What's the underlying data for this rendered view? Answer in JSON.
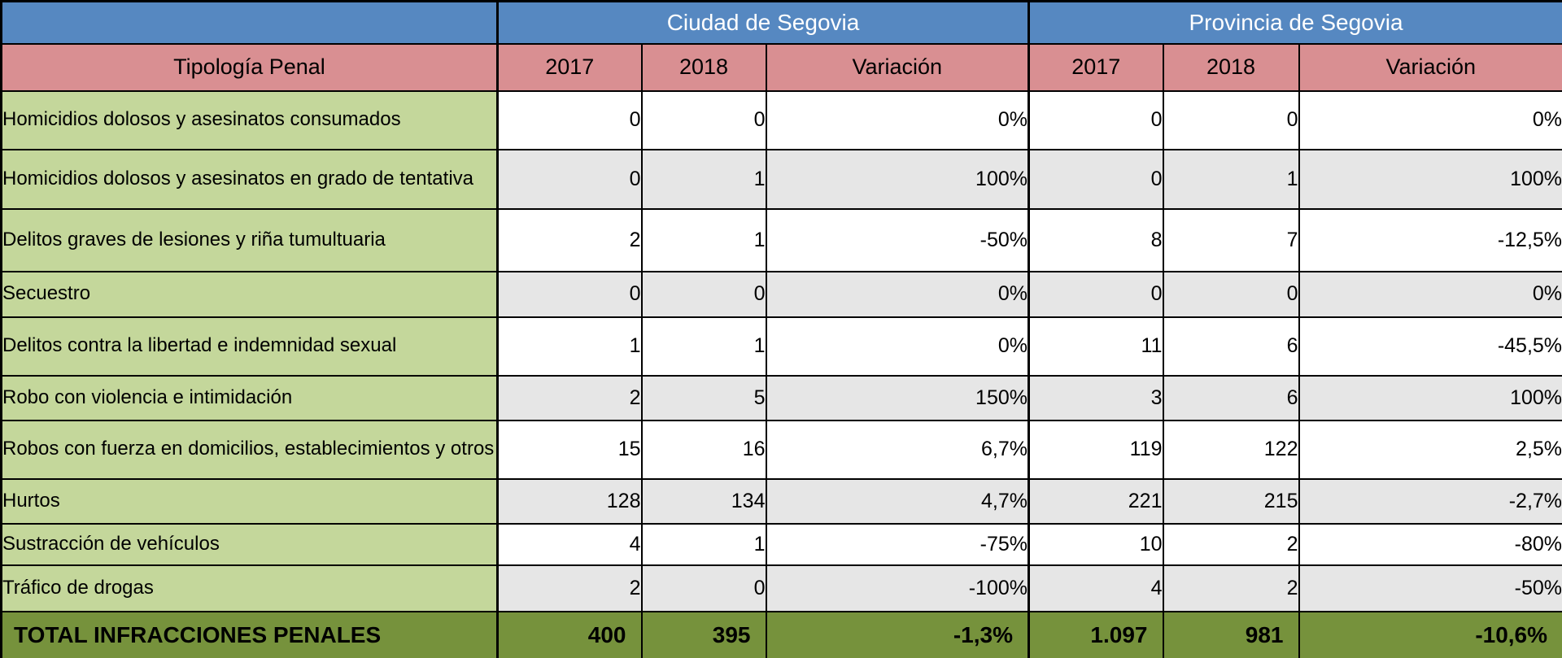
{
  "table": {
    "group_headers": {
      "corner": "",
      "city": "Ciudad de Segovia",
      "province": "Provincia de Segovia"
    },
    "column_headers": {
      "label": "Tipología Penal",
      "city": [
        "2017",
        "2018",
        "Variación"
      ],
      "province": [
        "2017",
        "2018",
        "Variación"
      ]
    },
    "rows": [
      {
        "label": "Homicidios dolosos y asesinatos consumados",
        "city": [
          "0",
          "0",
          "0%"
        ],
        "province": [
          "0",
          "0",
          "0%"
        ]
      },
      {
        "label": "Homicidios dolosos y asesinatos en grado de tentativa",
        "city": [
          "0",
          "1",
          "100%"
        ],
        "province": [
          "0",
          "1",
          "100%"
        ]
      },
      {
        "label": "Delitos graves de lesiones y riña tumultuaria",
        "city": [
          "2",
          "1",
          "-50%"
        ],
        "province": [
          "8",
          "7",
          "-12,5%"
        ]
      },
      {
        "label": "Secuestro",
        "city": [
          "0",
          "0",
          "0%"
        ],
        "province": [
          "0",
          "0",
          "0%"
        ]
      },
      {
        "label": "Delitos contra la libertad e indemnidad sexual",
        "city": [
          "1",
          "1",
          "0%"
        ],
        "province": [
          "11",
          "6",
          "-45,5%"
        ]
      },
      {
        "label": "Robo con violencia e intimidación",
        "city": [
          "2",
          "5",
          "150%"
        ],
        "province": [
          "3",
          "6",
          "100%"
        ]
      },
      {
        "label": "Robos con fuerza en domicilios, establecimientos y otros",
        "city": [
          "15",
          "16",
          "6,7%"
        ],
        "province": [
          "119",
          "122",
          "2,5%"
        ]
      },
      {
        "label": "Hurtos",
        "city": [
          "128",
          "134",
          "4,7%"
        ],
        "province": [
          "221",
          "215",
          "-2,7%"
        ]
      },
      {
        "label": "Sustracción de vehículos",
        "city": [
          "4",
          "1",
          "-75%"
        ],
        "province": [
          "10",
          "2",
          "-80%"
        ]
      },
      {
        "label": "Tráfico de drogas",
        "city": [
          "2",
          "0",
          "-100%"
        ],
        "province": [
          "4",
          "2",
          "-50%"
        ]
      }
    ],
    "total_row": {
      "label": "TOTAL INFRACCIONES PENALES",
      "city": [
        "400",
        "395",
        "-1,3%"
      ],
      "province": [
        "1.097",
        "981",
        "-10,6%"
      ]
    }
  },
  "colors": {
    "group_header_bg": "#5688C1",
    "group_header_text": "#FFFFFF",
    "column_header_bg": "#D98F92",
    "row_label_bg": "#C4D79B",
    "total_row_bg": "#76923C",
    "stripe_gray": "#E6E6E6",
    "stripe_white": "#FFFFFF",
    "border": "#000000"
  },
  "chart_data": {
    "type": "table",
    "title": "Infracciones penales — Ciudad y Provincia de Segovia (2017 vs 2018)",
    "columns": [
      "Tipología Penal",
      "Ciudad 2017",
      "Ciudad 2018",
      "Ciudad Variación",
      "Provincia 2017",
      "Provincia 2018",
      "Provincia Variación"
    ],
    "rows": [
      [
        "Homicidios dolosos y asesinatos consumados",
        0,
        0,
        "0%",
        0,
        0,
        "0%"
      ],
      [
        "Homicidios dolosos y asesinatos en grado de tentativa",
        0,
        1,
        "100%",
        0,
        1,
        "100%"
      ],
      [
        "Delitos graves de lesiones y riña tumultuaria",
        2,
        1,
        "-50%",
        8,
        7,
        "-12,5%"
      ],
      [
        "Secuestro",
        0,
        0,
        "0%",
        0,
        0,
        "0%"
      ],
      [
        "Delitos contra la libertad e indemnidad sexual",
        1,
        1,
        "0%",
        11,
        6,
        "-45,5%"
      ],
      [
        "Robo con violencia e intimidación",
        2,
        5,
        "150%",
        3,
        6,
        "100%"
      ],
      [
        "Robos con fuerza en domicilios, establecimientos y otros",
        15,
        16,
        "6,7%",
        119,
        122,
        "2,5%"
      ],
      [
        "Hurtos",
        128,
        134,
        "4,7%",
        221,
        215,
        "-2,7%"
      ],
      [
        "Sustracción de vehículos",
        4,
        1,
        "-75%",
        10,
        2,
        "-80%"
      ],
      [
        "Tráfico de drogas",
        2,
        0,
        "-100%",
        4,
        2,
        "-50%"
      ],
      [
        "TOTAL INFRACCIONES PENALES",
        400,
        395,
        "-1,3%",
        1097,
        981,
        "-10,6%"
      ]
    ]
  }
}
